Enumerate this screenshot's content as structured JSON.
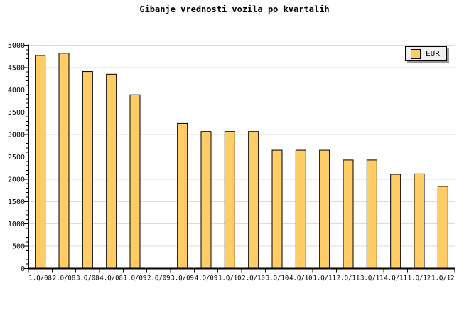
{
  "title": "Gibanje vrednosti vozila po kvartalih",
  "legend": {
    "label": "EUR"
  },
  "colors": {
    "bar_fill": "#FFCC66",
    "bar_border": "#000000",
    "gridline": "#DCDCDC",
    "axis": "#000000",
    "legend_bg": "#F0F0F0",
    "legend_shadow": "#999999",
    "background": "#FFFFFF"
  },
  "chart_data": {
    "type": "bar",
    "title": "Gibanje vrednosti vozila po kvartalih",
    "xlabel": "",
    "ylabel": "",
    "categories": [
      "1.Q/08",
      "2.Q/08",
      "3.Q/08",
      "4.Q/08",
      "1.Q/09",
      "2.Q/09",
      "3.Q/09",
      "4.Q/09",
      "1.Q/10",
      "2.Q/10",
      "3.Q/10",
      "4.Q/10",
      "1.Q/11",
      "2.Q/11",
      "3.Q/11",
      "4.Q/11",
      "1.Q/12",
      "1.Q/12"
    ],
    "values": [
      4770,
      4820,
      4410,
      4350,
      3890,
      null,
      3250,
      3070,
      3070,
      3070,
      2650,
      2650,
      2650,
      2430,
      2430,
      2110,
      2120,
      1840
    ],
    "series_name": "EUR",
    "ylim": [
      0,
      5000
    ],
    "ytick_step": 500,
    "y_minor_step": 100,
    "y_tick_labels": [
      "0",
      "500",
      "1000",
      "1500",
      "2000",
      "2500",
      "3000",
      "3500",
      "4000",
      "4500",
      "5000"
    ],
    "grid": true,
    "legend_position": "top-right",
    "missing_bars": [
      "2.Q/09"
    ]
  }
}
